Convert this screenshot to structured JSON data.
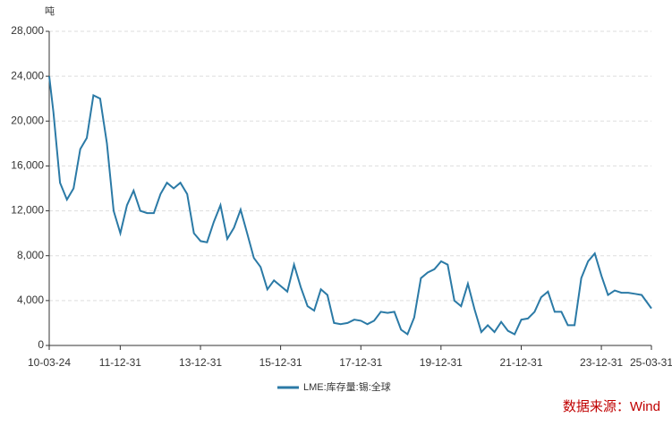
{
  "chart_data": {
    "type": "line",
    "y_unit": "吨",
    "source": "数据来源：Wind",
    "x": [
      "10-03-24",
      "10-05",
      "10-07",
      "10-09",
      "10-11",
      "11-01",
      "11-03",
      "11-05",
      "11-07",
      "11-09",
      "11-11",
      "12-01",
      "12-03",
      "12-05",
      "12-07",
      "12-09",
      "12-11",
      "13-01",
      "13-03",
      "13-05",
      "13-07",
      "13-09",
      "13-11",
      "14-01",
      "14-03",
      "14-05",
      "14-07",
      "14-09",
      "14-11",
      "15-01",
      "15-03",
      "15-05",
      "15-07",
      "15-09",
      "15-11",
      "16-01",
      "16-03",
      "16-05",
      "16-07",
      "16-09",
      "16-11",
      "17-01",
      "17-03",
      "17-05",
      "17-07",
      "17-09",
      "17-11",
      "18-01",
      "18-03",
      "18-05",
      "18-07",
      "18-09",
      "18-11",
      "19-01",
      "19-03",
      "19-05",
      "19-07",
      "19-09",
      "19-11",
      "20-01",
      "20-03",
      "20-05",
      "20-07",
      "20-09",
      "20-11",
      "21-01",
      "21-03",
      "21-05",
      "21-07",
      "21-09",
      "21-11",
      "22-01",
      "22-03",
      "22-05",
      "22-07",
      "22-09",
      "22-11",
      "23-01",
      "23-03",
      "23-05",
      "23-07",
      "23-09",
      "23-11",
      "24-01",
      "24-03",
      "24-05",
      "24-07",
      "24-09",
      "24-11",
      "25-01",
      "25-03-31"
    ],
    "series": [
      {
        "name": "LME:库存量:锡:全球",
        "color": "#2b7aa6",
        "values": [
          24000,
          20800,
          14500,
          13000,
          14000,
          17500,
          18500,
          22300,
          22000,
          18000,
          12000,
          10000,
          12500,
          13800,
          12000,
          11800,
          11800,
          13500,
          14500,
          14000,
          14500,
          13500,
          10000,
          9300,
          9200,
          11000,
          12500,
          9500,
          10500,
          12100,
          10000,
          7800,
          7000,
          5000,
          5800,
          5300,
          4800,
          7200,
          5200,
          3500,
          3100,
          5000,
          4500,
          2000,
          1900,
          2000,
          2300,
          2200,
          1900,
          2200,
          3000,
          2900,
          3000,
          1400,
          1000,
          2500,
          6000,
          6500,
          6800,
          7500,
          7200,
          4000,
          3500,
          5500,
          3200,
          1200,
          1800,
          1200,
          2100,
          1300,
          1000,
          2300,
          2400,
          3000,
          4300,
          4800,
          3000,
          3000,
          1800,
          1800,
          6000,
          7500,
          8200,
          6200,
          4500,
          4900,
          4700,
          4700,
          4600,
          4500,
          3300
        ]
      }
    ],
    "xlim": [
      "10-03-24",
      "25-03-31"
    ],
    "xticks": [
      "10-03-24",
      "11-12-31",
      "13-12-31",
      "15-12-31",
      "17-12-31",
      "19-12-31",
      "21-12-31",
      "23-12-31",
      "25-03-31"
    ],
    "ylim": [
      0,
      28000
    ],
    "yticks": [
      0,
      {
        "value": 4000,
        "label": "4,000"
      },
      {
        "value": 8000,
        "label": "8,000"
      },
      {
        "value": 12000,
        "label": "12,000"
      },
      {
        "value": 16000,
        "label": "16,000"
      },
      {
        "value": 20000,
        "label": "20,000"
      },
      {
        "value": 24000,
        "label": "24,000"
      },
      {
        "value": 28000,
        "label": "28,000"
      }
    ],
    "grid": true
  }
}
